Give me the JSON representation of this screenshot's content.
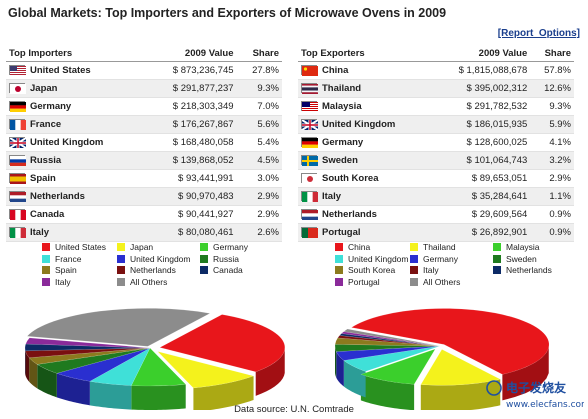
{
  "title": "Global Markets: Top Importers and Exporters of Microwave Ovens in 2009",
  "report_link": "[Report_Options]",
  "importers": {
    "headers": [
      "Top Importers",
      "2009 Value",
      "Share"
    ],
    "rows": [
      {
        "country": "United States",
        "value": "$ 873,236,745",
        "share": "27.8%",
        "flag": "us-flag-icon"
      },
      {
        "country": "Japan",
        "value": "$ 291,877,237",
        "share": "9.3%",
        "flag": "jp-flag-icon"
      },
      {
        "country": "Germany",
        "value": "$ 218,303,349",
        "share": "7.0%",
        "flag": "de-flag-icon"
      },
      {
        "country": "France",
        "value": "$ 176,267,867",
        "share": "5.6%",
        "flag": "fr-flag-icon"
      },
      {
        "country": "United Kingdom",
        "value": "$ 168,480,058",
        "share": "5.4%",
        "flag": "gb-flag-icon"
      },
      {
        "country": "Russia",
        "value": "$ 139,868,052",
        "share": "4.5%",
        "flag": "ru-flag-icon"
      },
      {
        "country": "Spain",
        "value": "$ 93,441,991",
        "share": "3.0%",
        "flag": "es-flag-icon"
      },
      {
        "country": "Netherlands",
        "value": "$ 90,970,483",
        "share": "2.9%",
        "flag": "nl-flag-icon"
      },
      {
        "country": "Canada",
        "value": "$ 90,441,927",
        "share": "2.9%",
        "flag": "ca-flag-icon"
      },
      {
        "country": "Italy",
        "value": "$ 80,080,461",
        "share": "2.6%",
        "flag": "it-flag-icon"
      }
    ]
  },
  "exporters": {
    "headers": [
      "Top Exporters",
      "2009 Value",
      "Share"
    ],
    "rows": [
      {
        "country": "China",
        "value": "$ 1,815,088,678",
        "share": "57.8%",
        "flag": "cn-flag-icon"
      },
      {
        "country": "Thailand",
        "value": "$ 395,002,312",
        "share": "12.6%",
        "flag": "th-flag-icon"
      },
      {
        "country": "Malaysia",
        "value": "$ 291,782,532",
        "share": "9.3%",
        "flag": "my-flag-icon"
      },
      {
        "country": "United Kingdom",
        "value": "$ 186,015,935",
        "share": "5.9%",
        "flag": "gb-flag-icon"
      },
      {
        "country": "Germany",
        "value": "$ 128,600,025",
        "share": "4.1%",
        "flag": "de-flag-icon"
      },
      {
        "country": "Sweden",
        "value": "$ 101,064,743",
        "share": "3.2%",
        "flag": "se-flag-icon"
      },
      {
        "country": "South Korea",
        "value": "$ 89,653,051",
        "share": "2.9%",
        "flag": "kr-flag-icon"
      },
      {
        "country": "Italy",
        "value": "$ 35,284,641",
        "share": "1.1%",
        "flag": "it-flag-icon"
      },
      {
        "country": "Netherlands",
        "value": "$ 29,609,564",
        "share": "0.9%",
        "flag": "nl-flag-icon"
      },
      {
        "country": "Portugal",
        "value": "$ 26,892,901",
        "share": "0.9%",
        "flag": "pt-flag-icon"
      }
    ]
  },
  "flag_colors": {
    "us-flag-icon": [
      "#b22234",
      "#ffffff",
      "#3c3b6e"
    ],
    "jp-flag-icon": [
      "#ffffff",
      "#bc002d"
    ],
    "de-flag-icon": [
      "#000000",
      "#dd0000",
      "#ffce00"
    ],
    "fr-flag-icon": [
      "#0055a4",
      "#ffffff",
      "#ef4135"
    ],
    "gb-flag-icon": [
      "#012169",
      "#ffffff",
      "#c8102e"
    ],
    "ru-flag-icon": [
      "#ffffff",
      "#0039a6",
      "#d52b1e"
    ],
    "es-flag-icon": [
      "#aa151b",
      "#f1bf00",
      "#aa151b"
    ],
    "nl-flag-icon": [
      "#ae1c28",
      "#ffffff",
      "#21468b"
    ],
    "ca-flag-icon": [
      "#d80621",
      "#ffffff",
      "#d80621"
    ],
    "it-flag-icon": [
      "#009246",
      "#ffffff",
      "#ce2b37"
    ],
    "cn-flag-icon": [
      "#de2910",
      "#ffde00"
    ],
    "th-flag-icon": [
      "#a51931",
      "#f4f5f8",
      "#2d2a4a"
    ],
    "my-flag-icon": [
      "#cc0001",
      "#ffffff",
      "#010066"
    ],
    "se-flag-icon": [
      "#006aa7",
      "#fecc00"
    ],
    "kr-flag-icon": [
      "#ffffff",
      "#cd2e3a",
      "#0047a0"
    ],
    "pt-flag-icon": [
      "#046a38",
      "#da291c"
    ]
  },
  "chart_data": [
    {
      "type": "pie",
      "title": "",
      "categories": [
        "United States",
        "Japan",
        "Germany",
        "France",
        "United Kingdom",
        "Russia",
        "Spain",
        "Netherlands",
        "Canada",
        "Italy",
        "All Others"
      ],
      "values": [
        27.8,
        9.3,
        7.0,
        5.6,
        5.4,
        4.5,
        3.0,
        2.9,
        2.9,
        2.6,
        29.0
      ],
      "colors": [
        "#e8161b",
        "#f4f21c",
        "#3bcf2c",
        "#3fe0d8",
        "#2a2fd0",
        "#1f7a1f",
        "#8c7a1e",
        "#7a1010",
        "#0d2a66",
        "#8a2a9a",
        "#8c8c8c"
      ],
      "legend_placement": "top"
    },
    {
      "type": "pie",
      "title": "",
      "categories": [
        "China",
        "Thailand",
        "Malaysia",
        "United Kingdom",
        "Germany",
        "Sweden",
        "South Korea",
        "Italy",
        "Netherlands",
        "Portugal",
        "All Others"
      ],
      "values": [
        57.8,
        12.6,
        9.3,
        5.9,
        4.1,
        3.2,
        2.9,
        1.1,
        0.9,
        0.9,
        1.3
      ],
      "colors": [
        "#e8161b",
        "#f4f21c",
        "#3bcf2c",
        "#3fe0d8",
        "#2a2fd0",
        "#1f7a1f",
        "#8c7a1e",
        "#7a1010",
        "#0d2a66",
        "#8a2a9a",
        "#8c8c8c"
      ],
      "legend_placement": "top"
    }
  ],
  "source": "Data source: U.N. Comtrade"
}
